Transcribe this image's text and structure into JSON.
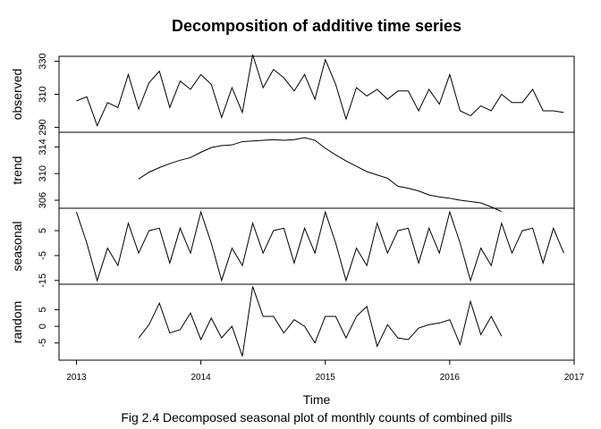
{
  "title": "Decomposition of additive time series",
  "xlabel": "Time",
  "caption": "Fig 2.4 Decomposed seasonal plot of monthly counts of combined pills",
  "chart_data": {
    "type": "line",
    "title": "Decomposition of additive time series",
    "xlabel": "Time",
    "x_start": 2013,
    "frequency": 12,
    "xlim": [
      2012.86,
      2017.0
    ],
    "xticks": [
      2013,
      2014,
      2015,
      2016,
      2017
    ],
    "panels": [
      {
        "name": "observed",
        "ylabel": "observed",
        "ylim": [
          287,
          333
        ],
        "yticks": [
          290,
          310,
          330
        ],
        "values": [
          306,
          308.5,
          291,
          305,
          302,
          322,
          301,
          317,
          324,
          302,
          318,
          313,
          322,
          316,
          296,
          314,
          299,
          334,
          314,
          325,
          320,
          312,
          322,
          307,
          331,
          316,
          295,
          314,
          309,
          313,
          307,
          312,
          312,
          300,
          313,
          304,
          322,
          300,
          297,
          303,
          300,
          310,
          305,
          305,
          313,
          300,
          300,
          299
        ]
      },
      {
        "name": "trend",
        "ylabel": "trend",
        "ylim": [
          304.8,
          316.2
        ],
        "yticks": [
          306,
          310,
          314
        ],
        "values": [
          null,
          null,
          null,
          null,
          null,
          null,
          309.2,
          310.2,
          310.9,
          311.5,
          312.0,
          312.4,
          313.2,
          313.9,
          314.2,
          314.3,
          314.8,
          314.9,
          315.0,
          315.1,
          315.0,
          315.1,
          315.4,
          315.0,
          313.8,
          312.8,
          311.9,
          311.1,
          310.3,
          309.8,
          309.3,
          308.1,
          307.8,
          307.4,
          306.8,
          306.5,
          306.3,
          306.0,
          305.8,
          305.6,
          305.0,
          304.3,
          null,
          null,
          null,
          null,
          null,
          null
        ]
      },
      {
        "name": "seasonal",
        "ylabel": "seasonal",
        "ylim": [
          -16.5,
          14.0
        ],
        "yticks": [
          -15,
          -5,
          5
        ],
        "values": [
          12.5,
          0,
          -15,
          -2,
          -9,
          8,
          -4,
          5,
          6,
          -8,
          6,
          -4,
          12.5,
          0,
          -15,
          -2,
          -9,
          8,
          -4,
          5,
          6,
          -8,
          6,
          -4,
          12.5,
          0,
          -15,
          -2,
          -9,
          8,
          -4,
          5,
          6,
          -8,
          6,
          -4,
          12.5,
          0,
          -15,
          -2,
          -9,
          8,
          -4,
          5,
          6,
          -8,
          6,
          -4
        ]
      },
      {
        "name": "random",
        "ylabel": "random",
        "ylim": [
          -10.2,
          12.7
        ],
        "yticks": [
          -5,
          0,
          5
        ],
        "values": [
          null,
          null,
          null,
          null,
          null,
          null,
          -3.5,
          0.5,
          7,
          -2,
          -1,
          4,
          -4,
          2.5,
          -3.5,
          0,
          -9,
          12,
          3,
          3,
          -2,
          2,
          0,
          -5,
          3,
          3,
          -3.5,
          3,
          6,
          -6,
          0.5,
          -3.5,
          -4,
          -0.5,
          0.5,
          1,
          2,
          -5.5,
          7.5,
          -2.5,
          3,
          -3,
          null,
          null,
          null,
          null,
          null,
          null
        ]
      }
    ]
  }
}
